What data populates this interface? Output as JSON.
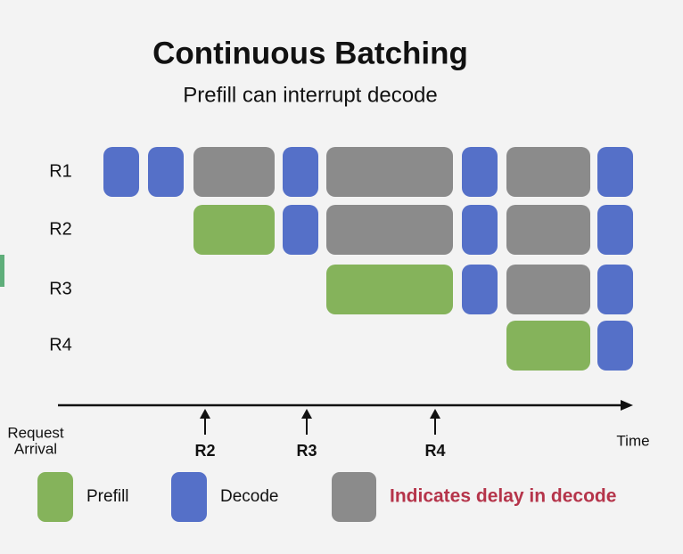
{
  "header": {
    "title": "Continuous Batching",
    "subtitle": "Prefill can interrupt decode"
  },
  "rows": [
    {
      "label": "R1"
    },
    {
      "label": "R2"
    },
    {
      "label": "R3"
    },
    {
      "label": "R4"
    }
  ],
  "axis": {
    "start_label_line1": "Request",
    "start_label_line2": "Arrival",
    "end_label": "Time",
    "arrivals": [
      {
        "label": "R2"
      },
      {
        "label": "R3"
      },
      {
        "label": "R4"
      }
    ]
  },
  "legend": {
    "prefill": "Prefill",
    "decode": "Decode",
    "delay": "Indicates delay in decode"
  }
}
